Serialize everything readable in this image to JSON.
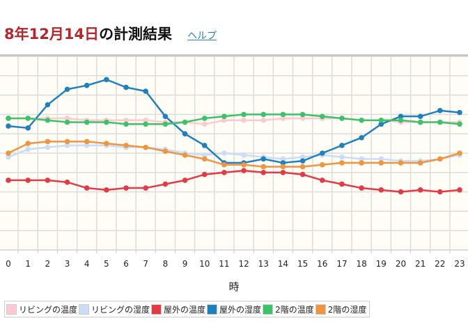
{
  "header": {
    "title_date": "8年12月14日",
    "title_rest": "の計測結果",
    "help_link": "ヘルプ"
  },
  "chart_data": {
    "type": "line",
    "title": "",
    "xlabel": "時",
    "ylabel": "",
    "x": [
      0,
      1,
      2,
      3,
      4,
      5,
      6,
      7,
      8,
      9,
      10,
      11,
      12,
      13,
      14,
      15,
      16,
      17,
      18,
      19,
      20,
      21,
      22,
      23
    ],
    "x_tick_labels": [
      "0",
      "1",
      "2",
      "3",
      "4",
      "5",
      "6",
      "7",
      "8",
      "9",
      "10",
      "11",
      "12",
      "13",
      "14",
      "15",
      "16",
      "17",
      "18",
      "19",
      "20",
      "21",
      "22",
      "23"
    ],
    "y_axis_labels_shown": false,
    "ylim": [
      0,
      10
    ],
    "grid": true,
    "legend_position": "bottom",
    "background_color": "#fffdf5",
    "series": [
      {
        "name": "リビングの温度",
        "color": "#ffc9cf",
        "values": [
          6.8,
          6.8,
          6.8,
          6.8,
          6.7,
          6.7,
          6.7,
          6.7,
          6.6,
          6.6,
          6.5,
          6.7,
          6.7,
          6.7,
          6.8,
          6.8,
          6.8,
          6.8,
          6.7,
          6.7,
          6.6,
          6.6,
          6.6,
          6.6
        ]
      },
      {
        "name": "リビングの湿度",
        "color": "#c9dcf8",
        "values": [
          4.8,
          5.2,
          5.3,
          5.4,
          5.4,
          5.4,
          5.3,
          5.3,
          5.2,
          5.0,
          4.9,
          5.0,
          4.9,
          4.8,
          4.7,
          4.8,
          4.9,
          4.8,
          4.7,
          4.7,
          4.6,
          4.6,
          4.7,
          4.9
        ]
      },
      {
        "name": "屋外の温度",
        "color": "#e23b45",
        "values": [
          3.6,
          3.6,
          3.6,
          3.5,
          3.2,
          3.1,
          3.2,
          3.2,
          3.4,
          3.6,
          3.9,
          4.0,
          4.1,
          4.0,
          4.0,
          3.9,
          3.6,
          3.4,
          3.2,
          3.1,
          3.0,
          3.1,
          3.0,
          3.1
        ]
      },
      {
        "name": "屋外の湿度",
        "color": "#1f7fbf",
        "values": [
          6.4,
          6.3,
          7.5,
          8.3,
          8.5,
          8.8,
          8.4,
          8.2,
          6.9,
          6.0,
          5.4,
          4.5,
          4.5,
          4.7,
          4.5,
          4.6,
          5.0,
          5.4,
          5.8,
          6.5,
          6.9,
          6.9,
          7.2,
          7.1
        ]
      },
      {
        "name": "2階の温度",
        "color": "#3cc36a",
        "values": [
          6.8,
          6.8,
          6.7,
          6.6,
          6.6,
          6.6,
          6.5,
          6.5,
          6.5,
          6.6,
          6.8,
          6.9,
          7.0,
          7.0,
          7.0,
          7.0,
          6.9,
          6.8,
          6.7,
          6.7,
          6.7,
          6.6,
          6.6,
          6.5
        ]
      },
      {
        "name": "2階の湿度",
        "color": "#ef9440",
        "values": [
          5.0,
          5.5,
          5.6,
          5.6,
          5.6,
          5.5,
          5.4,
          5.3,
          5.1,
          4.9,
          4.7,
          4.4,
          4.4,
          4.3,
          4.3,
          4.3,
          4.4,
          4.5,
          4.5,
          4.5,
          4.5,
          4.5,
          4.7,
          5.0
        ]
      }
    ]
  }
}
